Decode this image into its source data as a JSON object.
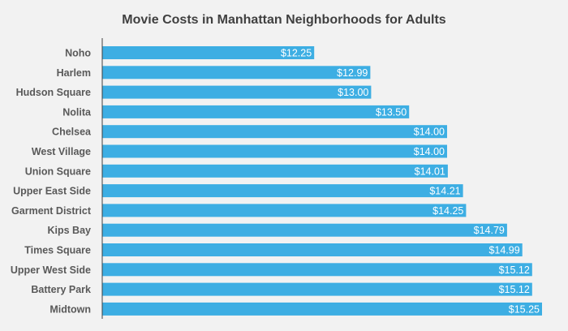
{
  "chart_data": {
    "type": "bar",
    "orientation": "horizontal",
    "title": "Movie Costs in Manhattan Neighborhoods for Adults",
    "xlabel": "",
    "ylabel": "",
    "categories": [
      "Noho",
      "Harlem",
      "Hudson Square",
      "Nolita",
      "Chelsea",
      "West Village",
      "Union Square",
      "Upper East Side",
      "Garment District",
      "Kips Bay",
      "Times Square",
      "Upper West Side",
      "Battery Park",
      "Midtown"
    ],
    "values": [
      12.25,
      12.99,
      13.0,
      13.5,
      14.0,
      14.0,
      14.01,
      14.21,
      14.25,
      14.79,
      14.99,
      15.12,
      15.12,
      15.25
    ],
    "data_labels": [
      "$12.25",
      "$12.99",
      "$13.00",
      "$13.50",
      "$14.00",
      "$14.00",
      "$14.01",
      "$14.21",
      "$14.25",
      "$14.79",
      "$14.99",
      "$15.12",
      "$15.12",
      "$15.25"
    ],
    "xlim": [
      9.46,
      15.25
    ],
    "grid": false,
    "legend": "none",
    "bar_color": "#3daee3",
    "label_color": "#ffffff",
    "category_label_color": "#595959",
    "axis_color": "#404040",
    "background": "#f2f2f2"
  }
}
